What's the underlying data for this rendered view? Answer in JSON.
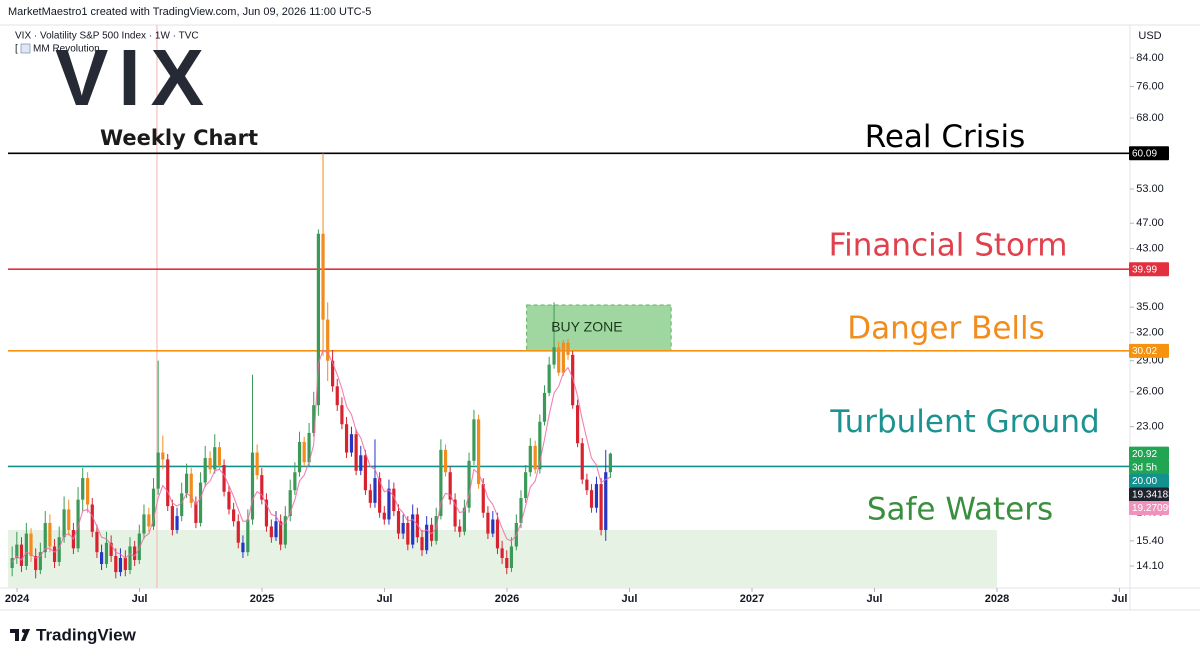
{
  "chart_data": {
    "type": "candlestick",
    "header": "MarketMaestro1 created with TradingView.com, Jun 09, 2026 11:00 UTC-5",
    "legend_title": "VIX · Volatility S&P 500 Index · 1W · TVC",
    "indicator": "MM Revolution",
    "logo_text": "VIX",
    "subtitle": "Weekly Chart",
    "currency": "USD",
    "brand": "TradingView",
    "log_scale": true,
    "xlim": [
      2023.963,
      2028.543
    ],
    "xticks": [
      {
        "value": 2024,
        "label": "2024"
      },
      {
        "value": 2024.5,
        "label": "Jul"
      },
      {
        "value": 2025,
        "label": "2025"
      },
      {
        "value": 2025.5,
        "label": "Jul"
      },
      {
        "value": 2026,
        "label": "2026"
      },
      {
        "value": 2026.5,
        "label": "Jul"
      },
      {
        "value": 2027,
        "label": "2027"
      },
      {
        "value": 2027.5,
        "label": "Jul"
      },
      {
        "value": 2028,
        "label": "2028"
      },
      {
        "value": 2028.5,
        "label": "Jul"
      }
    ],
    "ylim": [
      13.05,
      94.3
    ],
    "yticks": [
      {
        "value": 84,
        "label": "84.00"
      },
      {
        "value": 76,
        "label": "76.00"
      },
      {
        "value": 68,
        "label": "68.00"
      },
      {
        "value": 53,
        "label": "53.00"
      },
      {
        "value": 47,
        "label": "47.00"
      },
      {
        "value": 43,
        "label": "43.00"
      },
      {
        "value": 35,
        "label": "35.00"
      },
      {
        "value": 32,
        "label": "32.00"
      },
      {
        "value": 29,
        "label": "29.00"
      },
      {
        "value": 26,
        "label": "26.00"
      },
      {
        "value": 23,
        "label": "23.00"
      },
      {
        "value": 17,
        "label": "17.00"
      },
      {
        "value": 15.4,
        "label": "15.40"
      },
      {
        "value": 14.1,
        "label": "14.10"
      }
    ],
    "x": [
      2023.98,
      2023.999,
      2024.018,
      2024.038,
      2024.057,
      2024.076,
      2024.095,
      2024.115,
      2024.134,
      2024.153,
      2024.172,
      2024.192,
      2024.211,
      2024.23,
      2024.249,
      2024.268,
      2024.288,
      2024.307,
      2024.326,
      2024.345,
      2024.365,
      2024.384,
      2024.403,
      2024.422,
      2024.442,
      2024.461,
      2024.48,
      2024.499,
      2024.518,
      2024.538,
      2024.557,
      2024.576,
      2024.595,
      2024.615,
      2024.634,
      2024.653,
      2024.672,
      2024.692,
      2024.711,
      2024.73,
      2024.749,
      2024.768,
      2024.788,
      2024.807,
      2024.826,
      2024.845,
      2024.865,
      2024.884,
      2024.903,
      2024.922,
      2024.942,
      2024.961,
      2024.98,
      2024.999,
      2025.018,
      2025.038,
      2025.057,
      2025.076,
      2025.095,
      2025.115,
      2025.134,
      2025.153,
      2025.172,
      2025.192,
      2025.211,
      2025.23,
      2025.249,
      2025.268,
      2025.288,
      2025.307,
      2025.326,
      2025.345,
      2025.365,
      2025.384,
      2025.403,
      2025.422,
      2025.442,
      2025.461,
      2025.48,
      2025.499,
      2025.518,
      2025.538,
      2025.557,
      2025.576,
      2025.595,
      2025.615,
      2025.634,
      2025.653,
      2025.672,
      2025.692,
      2025.711,
      2025.73,
      2025.749,
      2025.768,
      2025.788,
      2025.807,
      2025.826,
      2025.845,
      2025.865,
      2025.884,
      2025.903,
      2025.922,
      2025.942,
      2025.961,
      2025.98,
      2025.999,
      2026.018,
      2026.038,
      2026.057,
      2026.076,
      2026.095,
      2026.115,
      2026.134,
      2026.153,
      2026.172,
      2026.192,
      2026.211,
      2026.23,
      2026.249,
      2026.268,
      2026.288,
      2026.307,
      2026.326,
      2026.345,
      2026.365,
      2026.384,
      2026.403,
      2026.422
    ],
    "series": [
      {
        "open": [
          14.0,
          14.5,
          15.2,
          14.1,
          15.8,
          14.6,
          13.9,
          14.8,
          16.4,
          15.1,
          14.3,
          15.6,
          17.2,
          16.0,
          15.0,
          17.8,
          19.2,
          17.5,
          15.9,
          14.8,
          14.2,
          15.3,
          14.6,
          13.8,
          14.5,
          13.9,
          15.1,
          14.4,
          15.8,
          16.9,
          16.2,
          18.5,
          21.0,
          20.5,
          17.4,
          16.0,
          16.8,
          18.2,
          19.5,
          17.6,
          16.4,
          18.9,
          20.6,
          19.8,
          21.4,
          20.1,
          18.3,
          17.2,
          16.5,
          15.3,
          14.8,
          16.6,
          21.0,
          19.4,
          17.8,
          16.2,
          15.6,
          16.5,
          15.2,
          16.8,
          18.4,
          19.6,
          21.8,
          20.3,
          22.5,
          24.8,
          45.3,
          33.5,
          29.0,
          26.5,
          24.8,
          23.2,
          21.0,
          22.4,
          19.7,
          20.8,
          18.4,
          17.6,
          19.2,
          17.0,
          16.6,
          18.5,
          17.1,
          15.8,
          16.4,
          15.2,
          16.9,
          15.6,
          14.9,
          16.3,
          15.4,
          16.8,
          21.2,
          19.6,
          17.8,
          16.2,
          15.9,
          17.3,
          20.4,
          23.6,
          18.8,
          17.0,
          15.8,
          16.6,
          15.0,
          14.5,
          14.0,
          15.1,
          16.4,
          17.9,
          19.6,
          21.5,
          19.8,
          23.4,
          25.9,
          28.6,
          30.4,
          27.8,
          30.9,
          29.6,
          24.8,
          21.7,
          19.1,
          18.4,
          17.3,
          18.8,
          16.0,
          19.6
        ],
        "high": [
          15.1,
          15.9,
          15.6,
          16.4,
          16.1,
          15.0,
          15.3,
          17.1,
          16.9,
          15.5,
          16.2,
          18.0,
          17.8,
          16.4,
          18.6,
          19.9,
          19.6,
          17.9,
          16.3,
          15.2,
          15.9,
          15.7,
          15.0,
          15.0,
          14.9,
          15.6,
          15.4,
          16.3,
          17.5,
          17.3,
          19.2,
          29.0,
          22.3,
          20.9,
          17.8,
          17.3,
          18.9,
          20.2,
          19.9,
          18.0,
          19.6,
          21.5,
          21.1,
          22.4,
          21.8,
          20.5,
          18.7,
          17.6,
          16.9,
          15.7,
          17.2,
          27.6,
          21.6,
          19.9,
          18.2,
          16.6,
          17.1,
          16.9,
          17.4,
          19.1,
          20.3,
          22.6,
          22.2,
          23.3,
          26.0,
          46.0,
          60.09,
          35.6,
          30.1,
          27.2,
          25.5,
          23.8,
          23.0,
          22.8,
          21.5,
          21.2,
          18.8,
          22.0,
          19.6,
          17.4,
          19.1,
          18.9,
          17.5,
          16.9,
          16.8,
          17.5,
          17.3,
          16.0,
          16.8,
          16.7,
          17.3,
          22.0,
          21.6,
          20.0,
          18.2,
          16.6,
          17.8,
          21.0,
          24.4,
          24.0,
          19.2,
          17.4,
          17.1,
          17.0,
          15.4,
          14.9,
          15.6,
          16.9,
          18.4,
          20.1,
          22.1,
          21.9,
          24.0,
          26.6,
          29.4,
          35.6,
          31.0,
          31.2,
          31.3,
          30.0,
          25.3,
          22.1,
          19.5,
          18.8,
          19.3,
          19.2,
          21.2,
          21.0
        ],
        "low": [
          13.6,
          14.2,
          13.8,
          13.9,
          14.3,
          13.5,
          13.7,
          14.5,
          14.8,
          14.0,
          14.1,
          15.3,
          15.7,
          14.7,
          14.8,
          17.1,
          17.0,
          15.6,
          14.5,
          13.9,
          14.0,
          14.3,
          13.5,
          13.6,
          13.6,
          13.7,
          14.1,
          14.2,
          15.5,
          15.9,
          16.0,
          18.1,
          19.8,
          17.1,
          15.7,
          15.8,
          16.5,
          17.9,
          17.3,
          16.1,
          16.2,
          18.6,
          19.5,
          19.5,
          19.8,
          18.0,
          16.9,
          16.2,
          15.0,
          14.5,
          14.6,
          16.3,
          19.1,
          17.5,
          15.9,
          15.3,
          15.4,
          14.9,
          15.0,
          16.5,
          18.1,
          19.3,
          20.0,
          20.0,
          22.2,
          23.9,
          29.5,
          27.0,
          26.0,
          24.3,
          22.8,
          20.6,
          20.7,
          19.4,
          19.4,
          18.1,
          17.3,
          17.3,
          16.7,
          16.3,
          16.3,
          16.8,
          15.5,
          15.5,
          14.9,
          15.0,
          15.3,
          14.6,
          14.7,
          15.1,
          15.2,
          16.6,
          19.3,
          17.5,
          15.9,
          15.6,
          15.7,
          17.0,
          20.1,
          18.5,
          16.7,
          15.5,
          15.6,
          14.7,
          14.2,
          13.7,
          13.8,
          14.9,
          16.1,
          17.6,
          19.3,
          19.5,
          19.5,
          23.1,
          25.6,
          28.2,
          27.5,
          27.5,
          29.1,
          24.5,
          21.4,
          18.8,
          18.1,
          17.0,
          17.0,
          15.7,
          15.4,
          19.2
        ],
        "close": [
          14.5,
          15.2,
          14.1,
          15.8,
          14.6,
          13.9,
          14.8,
          16.4,
          15.1,
          14.3,
          15.6,
          17.2,
          16.0,
          15.0,
          17.8,
          19.2,
          17.5,
          15.9,
          14.8,
          14.2,
          15.3,
          14.6,
          13.8,
          14.5,
          13.9,
          15.1,
          14.4,
          15.8,
          16.9,
          16.2,
          18.5,
          21.0,
          20.5,
          17.4,
          16.0,
          16.8,
          18.2,
          19.5,
          17.6,
          16.4,
          18.9,
          20.6,
          19.8,
          21.4,
          20.1,
          18.3,
          17.2,
          16.5,
          15.3,
          14.8,
          16.6,
          21.0,
          19.4,
          17.8,
          16.2,
          15.6,
          16.5,
          15.2,
          16.8,
          18.4,
          19.6,
          21.8,
          20.3,
          22.5,
          24.8,
          45.3,
          33.5,
          29.0,
          26.5,
          24.8,
          23.2,
          21.0,
          22.4,
          19.7,
          20.8,
          18.4,
          17.6,
          19.2,
          17.0,
          16.6,
          18.5,
          17.1,
          15.8,
          16.4,
          15.2,
          16.9,
          15.6,
          14.9,
          16.3,
          15.4,
          16.8,
          21.2,
          19.6,
          17.8,
          16.2,
          15.9,
          17.3,
          20.4,
          23.6,
          18.8,
          17.0,
          15.8,
          16.6,
          15.0,
          14.5,
          14.0,
          15.1,
          16.4,
          17.9,
          19.6,
          21.5,
          19.8,
          23.4,
          25.9,
          28.6,
          30.4,
          27.8,
          30.9,
          29.6,
          24.8,
          21.7,
          19.1,
          18.4,
          17.3,
          18.8,
          16.0,
          19.6,
          20.92
        ],
        "color_codes": "ggrgorggorggorggorrbgrrbrgrggoggorrbggorggogorrrrbggorrrbrggggogggoorrrrbrbrrbrrbrrbrbrrbrggorrrgggorrbrrrgggggoggggooorrrrrbrbg",
        "palette": {
          "g": "#3b9a57",
          "r": "#d8232f",
          "o": "#f28c1c",
          "b": "#2536c4"
        }
      }
    ],
    "lines": [
      {
        "color": "#f06ba8",
        "values": [
          14.3,
          14.6,
          14.4,
          14.8,
          14.7,
          14.5,
          14.6,
          15.0,
          15.0,
          14.8,
          15.0,
          15.7,
          15.8,
          15.5,
          16.2,
          17.1,
          17.2,
          16.8,
          16.2,
          15.6,
          15.5,
          15.2,
          14.8,
          14.7,
          14.5,
          14.7,
          14.6,
          15.0,
          15.6,
          15.8,
          16.6,
          17.9,
          18.7,
          18.3,
          17.6,
          17.4,
          17.6,
          18.2,
          18.0,
          17.5,
          17.9,
          18.7,
          19.0,
          19.7,
          19.8,
          19.4,
          18.7,
          18.0,
          17.2,
          16.5,
          16.5,
          17.8,
          18.3,
          18.1,
          17.5,
          16.9,
          16.8,
          16.3,
          16.4,
          17.0,
          17.8,
          19.0,
          19.4,
          20.3,
          21.6,
          28.7,
          30.1,
          29.8,
          28.8,
          27.6,
          26.3,
          24.7,
          24.0,
          22.7,
          22.1,
          21.0,
          20.0,
          19.8,
          19.0,
          18.3,
          18.4,
          18.0,
          17.3,
          17.0,
          16.5,
          16.6,
          16.3,
          15.9,
          16.0,
          15.8,
          16.1,
          17.6,
          18.2,
          18.1,
          17.5,
          17.0,
          17.1,
          18.1,
          19.8,
          19.5,
          18.8,
          17.9,
          17.5,
          16.8,
          16.1,
          15.5,
          15.4,
          15.7,
          16.4,
          17.4,
          18.6,
          19.0,
          20.3,
          22.0,
          24.0,
          25.9,
          26.5,
          27.8,
          28.3,
          27.3,
          25.6,
          23.6,
          22.0,
          20.6,
          20.1,
          18.9,
          19.1,
          19.27099
        ]
      }
    ],
    "levels": [
      {
        "value": 60.09,
        "label": "60.09",
        "color": "#000000",
        "zone": "Real Crisis",
        "zone_color": "#000000"
      },
      {
        "value": 39.99,
        "label": "39.99",
        "color": "#e3303e",
        "zone": "Financial Storm",
        "zone_color": "#e0414e"
      },
      {
        "value": 30.02,
        "label": "30.02",
        "color": "#f5930f",
        "zone": "Danger Bells",
        "zone_color": "#f28c1c"
      },
      {
        "value": 20.0,
        "label": "20.00",
        "color": "#13918f",
        "zone": "Turbulent Ground",
        "zone_color": "#1d9391"
      }
    ],
    "safe_zone": {
      "label": "Safe Waters",
      "color": "#3a8f3f",
      "fill": "#e6f3e4",
      "x": [
        2023.963,
        2028.0
      ],
      "y": [
        13.05,
        16.0
      ]
    },
    "buy_zone": {
      "label": "BUY ZONE",
      "fill": "#8fd08f",
      "x": [
        2026.08,
        2026.67
      ],
      "y": [
        30.02,
        35.27
      ]
    },
    "vline": {
      "x": 2024.571,
      "color": "#f7b3b3"
    },
    "price_badges": [
      {
        "value": 20.92,
        "label": "20.92",
        "color": "#22a552"
      },
      {
        "label": "3d 5h",
        "color": "#22a552"
      },
      {
        "value": 19.341832,
        "label": "19.341832",
        "color": "#1e222d"
      },
      {
        "value": 19.27099,
        "label": "19.270990",
        "color": "#ef93bd"
      }
    ]
  }
}
